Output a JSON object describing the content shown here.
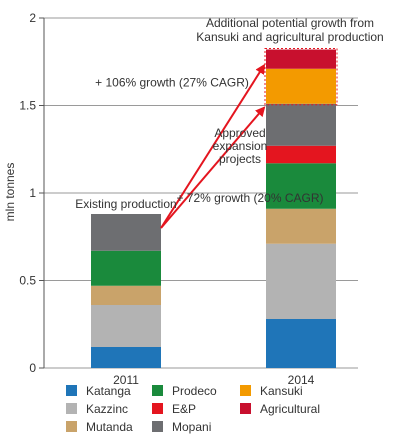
{
  "chart_data": {
    "type": "bar",
    "stacked": true,
    "ylabel": "mln tonnes",
    "ylim": [
      0,
      2
    ],
    "yticks": [
      0,
      0.5,
      1,
      1.5,
      2
    ],
    "grid": true,
    "legend_placement": "bottom",
    "categories": [
      "2011",
      "2014"
    ],
    "series": [
      {
        "name": "Katanga",
        "color": "#1f75b8",
        "values": [
          0.12,
          0.28
        ]
      },
      {
        "name": "Kazzinc",
        "color": "#b3b3b3",
        "values": [
          0.24,
          0.43
        ]
      },
      {
        "name": "Mutanda",
        "color": "#c9a36a",
        "values": [
          0.11,
          0.2
        ]
      },
      {
        "name": "Prodeco",
        "color": "#1a8a3c",
        "values": [
          0.2,
          0.26
        ]
      },
      {
        "name": "E&P",
        "color": "#e4151f",
        "values": [
          0.0,
          0.1
        ]
      },
      {
        "name": "Mopani",
        "color": "#6d6e71",
        "values": [
          0.21,
          0.24
        ]
      },
      {
        "name": "Kansuki",
        "color": "#f39a00",
        "values": [
          0.0,
          0.2
        ]
      },
      {
        "name": "Agricultural",
        "color": "#c8102e",
        "values": [
          0.0,
          0.11
        ]
      }
    ],
    "legend_order": [
      "Katanga",
      "Kazzinc",
      "Mutanda",
      "Prodeco",
      "E&P",
      "Mopani",
      "Kansuki",
      "Agricultural"
    ],
    "annotations": {
      "existing": "Existing production",
      "growth72": "+ 72% growth (20% CAGR)",
      "growth106": "+ 106% growth (27% CAGR)",
      "approved": [
        "Approved",
        "expansion",
        "projects"
      ],
      "additional": [
        "Additional potential growth from",
        "Kansuki and agricultural production"
      ]
    },
    "accent_color": "#e4151f"
  }
}
